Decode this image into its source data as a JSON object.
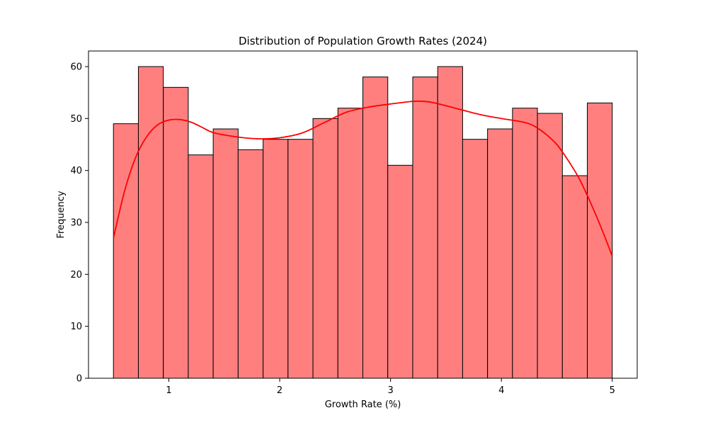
{
  "chart_data": {
    "type": "bar",
    "title": "Distribution of Population Growth Rates (2024)",
    "xlabel": "Growth Rate (%)",
    "ylabel": "Frequency",
    "xlim": [
      0.275,
      5.225
    ],
    "ylim": [
      0,
      63
    ],
    "x_ticks": [
      1,
      2,
      3,
      4,
      5
    ],
    "y_ticks": [
      0,
      10,
      20,
      30,
      40,
      50,
      60
    ],
    "bin_edges": [
      0.5,
      0.725,
      0.95,
      1.175,
      1.4,
      1.625,
      1.85,
      2.075,
      2.3,
      2.525,
      2.75,
      2.975,
      3.2,
      3.425,
      3.65,
      3.875,
      4.1,
      4.325,
      4.55,
      4.775,
      5.0
    ],
    "values": [
      49,
      60,
      56,
      43,
      48,
      44,
      46,
      46,
      50,
      52,
      58,
      41,
      58,
      60,
      46,
      48,
      52,
      51,
      39,
      53
    ],
    "bar_color": "#ff7f7f",
    "bar_edge_color": "#000000",
    "kde": {
      "color": "#ff0000",
      "x": [
        0.5,
        0.6,
        0.7,
        0.8,
        0.9,
        1.0,
        1.1,
        1.2,
        1.3,
        1.4,
        1.6,
        1.8,
        2.0,
        2.2,
        2.4,
        2.6,
        2.8,
        3.0,
        3.2,
        3.3,
        3.4,
        3.6,
        3.8,
        4.0,
        4.2,
        4.3,
        4.4,
        4.5,
        4.6,
        4.7,
        4.8,
        4.9,
        5.0
      ],
      "y": [
        27,
        36,
        42.5,
        46.5,
        48.8,
        49.7,
        49.8,
        49.3,
        48.3,
        47.3,
        46.5,
        46.1,
        46.3,
        47.2,
        49.2,
        51.2,
        52.2,
        52.8,
        53.3,
        53.3,
        53.0,
        51.9,
        50.8,
        50.0,
        49.3,
        48.5,
        47.0,
        45.0,
        42.0,
        38.5,
        34.0,
        29.0,
        23.5
      ]
    },
    "grid": false,
    "legend": "none"
  }
}
